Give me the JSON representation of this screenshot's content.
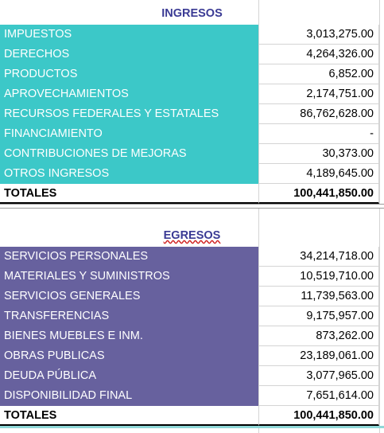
{
  "ingresos": {
    "title": "INGRESOS",
    "rows": [
      [
        "IMPUESTOS",
        "3,013,275.00"
      ],
      [
        "DERECHOS",
        "4,264,326.00"
      ],
      [
        "PRODUCTOS",
        "6,852.00"
      ],
      [
        "APROVECHAMIENTOS",
        "2,174,751.00"
      ],
      [
        "RECURSOS FEDERALES Y ESTATALES",
        "86,762,628.00"
      ],
      [
        "FINANCIAMIENTO",
        "-"
      ],
      [
        "CONTRIBUCIONES DE MEJORAS",
        "30,373.00"
      ],
      [
        "OTROS INGRESOS",
        "4,189,645.00"
      ]
    ],
    "total": [
      "TOTALES",
      "100,441,850.00"
    ]
  },
  "egresos": {
    "title": "EGRESOS",
    "rows": [
      [
        "SERVICIOS PERSONALES",
        "34,214,718.00"
      ],
      [
        "MATERIALES Y SUMINISTROS",
        "10,519,710.00"
      ],
      [
        "SERVICIOS GENERALES",
        "11,739,563.00"
      ],
      [
        "TRANSFERENCIAS",
        "9,175,957.00"
      ],
      [
        "BIENES MUEBLES E INM.",
        "873,262.00"
      ],
      [
        "OBRAS PUBLICAS",
        "23,189,061.00"
      ],
      [
        "DEUDA PÚBLICA",
        "3,077,965.00"
      ],
      [
        "DISPONIBILIDAD FINAL",
        "7,651,614.00"
      ]
    ],
    "total": [
      "TOTALES",
      "100,441,850.00"
    ]
  }
}
